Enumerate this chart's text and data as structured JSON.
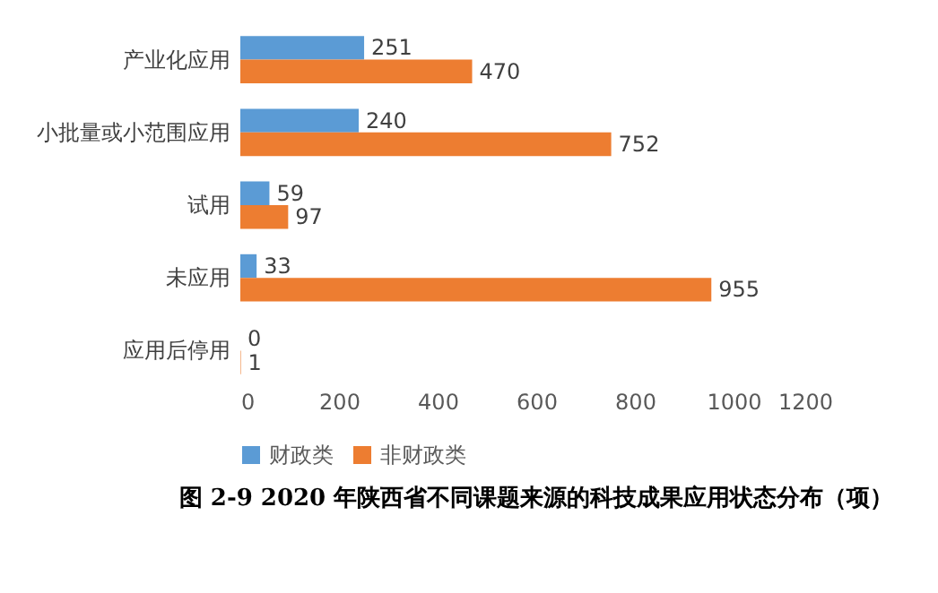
{
  "chart_data": {
    "type": "bar",
    "orientation": "horizontal",
    "title": "图 2-9  2020 年陕西省不同课题来源的科技成果应用状态分布（项）",
    "categories": [
      "产业化应用",
      "小批量或小范围应用",
      "试用",
      "未应用",
      "应用后停用"
    ],
    "series": [
      {
        "name": "财政类",
        "color": "#5b9bd5",
        "values": [
          251,
          240,
          59,
          33,
          0
        ]
      },
      {
        "name": "非财政类",
        "color": "#ed7d31",
        "values": [
          470,
          752,
          97,
          955,
          1
        ]
      }
    ],
    "xlim": [
      0,
      1200
    ],
    "xticks": [
      0,
      200,
      400,
      600,
      800,
      1000,
      1200
    ],
    "grid": false,
    "legend": "bottom",
    "data_labels": true
  }
}
